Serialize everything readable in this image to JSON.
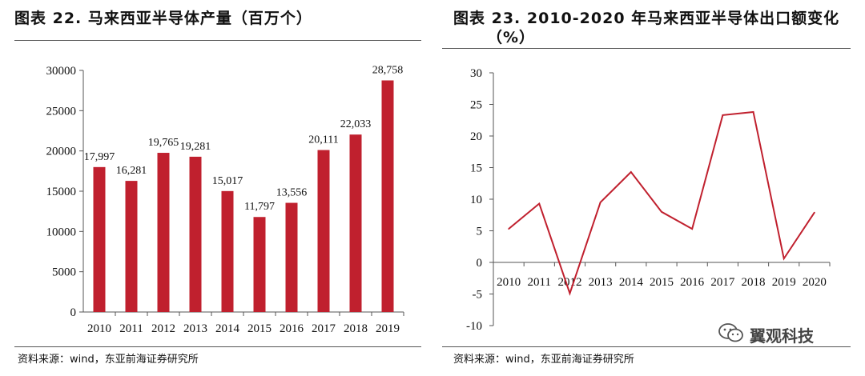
{
  "left": {
    "title": "图表 22. 马来西亚半导体产量（百万个）",
    "source": "资料来源：wind，东亚前海证券研究所"
  },
  "right": {
    "title_line1": "图表 23. 2010-2020 年马来西亚半导体出口额变化",
    "title_line2": "（%）",
    "source": "资料来源：wind，东亚前海证券研究所"
  },
  "watermark": {
    "text": "翼观科技",
    "icon": "wechat-icon"
  },
  "colors": {
    "bar": "#c0202e",
    "line": "#c0202e",
    "axis": "#555555"
  },
  "chart_data": [
    {
      "type": "bar",
      "title": "马来西亚半导体产量（百万个）",
      "categories": [
        "2010",
        "2011",
        "2012",
        "2013",
        "2014",
        "2015",
        "2016",
        "2017",
        "2018",
        "2019"
      ],
      "values": [
        17997,
        16281,
        19765,
        19281,
        15017,
        11797,
        13556,
        20111,
        22033,
        28758
      ],
      "data_labels": [
        "17,997",
        "16,281",
        "19,765",
        "19,281",
        "15,017",
        "11,797",
        "13,556",
        "20,111",
        "22,033",
        "28,758"
      ],
      "ylim": [
        0,
        30000
      ],
      "yticks": [
        "0",
        "5000",
        "10000",
        "15000",
        "20000",
        "25000",
        "30000"
      ],
      "grid": false
    },
    {
      "type": "line",
      "title": "2010-2020 年马来西亚半导体出口额变化（%）",
      "categories": [
        "2010",
        "2011",
        "2012",
        "2013",
        "2014",
        "2015",
        "2016",
        "2017",
        "2018",
        "2019",
        "2020"
      ],
      "values": [
        5.3,
        9.3,
        -4.9,
        9.5,
        14.3,
        8.0,
        5.3,
        23.3,
        23.8,
        0.6,
        7.9
      ],
      "ylim": [
        -10,
        30
      ],
      "yticks": [
        "-10",
        "-5",
        "0",
        "5",
        "10",
        "15",
        "20",
        "25",
        "30"
      ],
      "grid": false
    }
  ]
}
